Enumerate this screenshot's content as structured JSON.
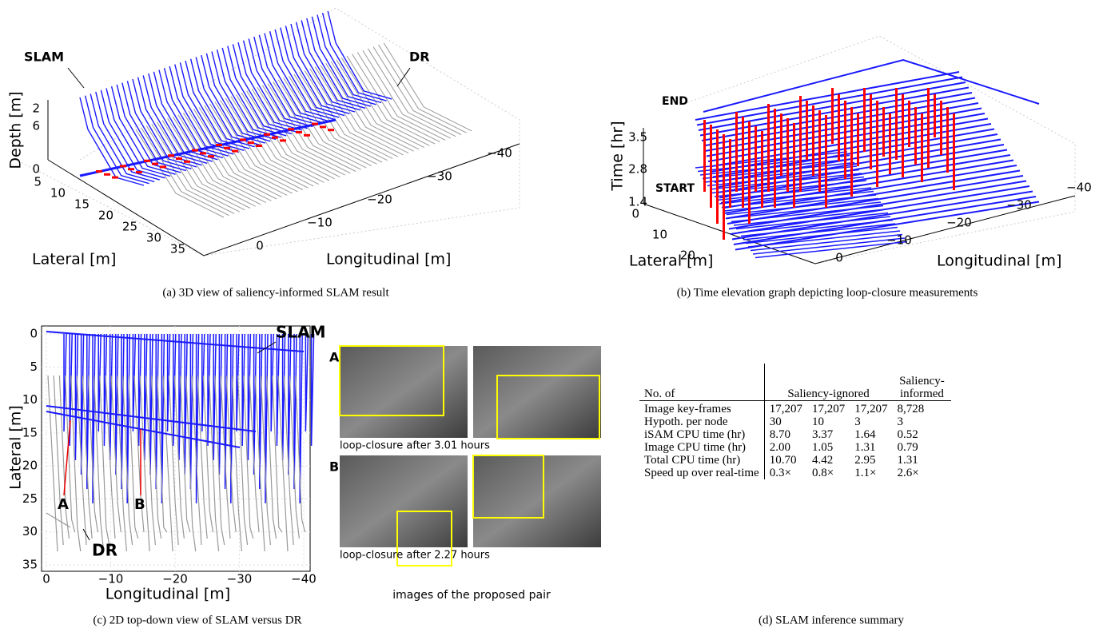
{
  "panel_a": {
    "annotations": [
      "SLAM",
      "DR"
    ],
    "z_label": "Depth [m]",
    "z_ticks": [
      "2",
      "6",
      "0"
    ],
    "lateral_label": "Lateral [m]",
    "lateral_ticks": [
      "5",
      "10",
      "15",
      "20",
      "25",
      "30",
      "35"
    ],
    "longitudinal_label": "Longitudinal [m]",
    "longitudinal_ticks": [
      "0",
      "−10",
      "−20",
      "−30",
      "−40"
    ],
    "caption": "(a) 3D view of saliency-informed SLAM result"
  },
  "panel_b": {
    "annotations": [
      "END",
      "START"
    ],
    "z_label": "Time [hr]",
    "z_ticks": [
      "3.5",
      "2.8",
      "1.4"
    ],
    "lateral_label": "Lateral [m]",
    "lateral_ticks": [
      "0",
      "10",
      "20"
    ],
    "longitudinal_label": "Longitudinal [m]",
    "longitudinal_ticks": [
      "0",
      "−10",
      "−20",
      "−30",
      "−40"
    ],
    "caption": "(b) Time elevation graph depicting loop-closure measurements"
  },
  "panel_c": {
    "annotations": [
      "SLAM",
      "DR",
      "A",
      "B"
    ],
    "y_label": "Lateral [m]",
    "y_ticks": [
      "0",
      "5",
      "10",
      "15",
      "20",
      "25",
      "30",
      "35"
    ],
    "x_label": "Longitudinal [m]",
    "x_ticks": [
      "0",
      "−10",
      "−20",
      "−30",
      "−40"
    ],
    "pairs": [
      {
        "label": "A",
        "note": "loop-closure after 3.01 hours"
      },
      {
        "label": "B",
        "note": "loop-closure after 2.27 hours"
      }
    ],
    "pairs_title": "images of the proposed pair",
    "caption": "(c) 2D top-down view of SLAM versus DR"
  },
  "panel_d": {
    "table": {
      "header": [
        "No. of",
        "Saliency-ignored",
        "Saliency-informed"
      ],
      "rows": [
        [
          "Image key-frames",
          "17,207",
          "17,207",
          "17,207",
          "8,728"
        ],
        [
          "Hypoth. per node",
          "30",
          "10",
          "3",
          "3"
        ],
        [
          "iSAM CPU time (hr)",
          "8.70",
          "3.37",
          "1.64",
          "0.52"
        ],
        [
          "Image CPU time (hr)",
          "2.00",
          "1.05",
          "1.31",
          "0.79"
        ],
        [
          "Total CPU time (hr)",
          "10.70",
          "4.42",
          "2.95",
          "1.31"
        ],
        [
          "Speed up over real-time",
          "0.3×",
          "0.8×",
          "1.1×",
          "2.6×"
        ]
      ]
    },
    "caption": "(d) SLAM inference summary"
  }
}
